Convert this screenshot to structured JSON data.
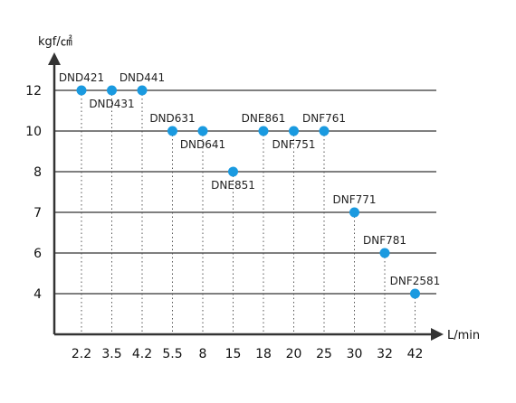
{
  "chart_data": {
    "type": "scatter",
    "ylabel": "kgf/㎠",
    "xlabel": "L/min",
    "x_categories": [
      "2.2",
      "3.5",
      "4.2",
      "5.5",
      "8",
      "15",
      "18",
      "20",
      "25",
      "30",
      "32",
      "42"
    ],
    "y_ticks": [
      4,
      6,
      7,
      8,
      10,
      12
    ],
    "grid": "horizontal",
    "point_color": "#1a9ae0",
    "points": [
      {
        "label": "DND421",
        "x": "2.2",
        "y": 12,
        "label_pos": "above"
      },
      {
        "label": "DND431",
        "x": "3.5",
        "y": 12,
        "label_pos": "below"
      },
      {
        "label": "DND441",
        "x": "4.2",
        "y": 12,
        "label_pos": "above"
      },
      {
        "label": "DND631",
        "x": "5.5",
        "y": 10,
        "label_pos": "above"
      },
      {
        "label": "DND641",
        "x": "8",
        "y": 10,
        "label_pos": "below"
      },
      {
        "label": "DNE851",
        "x": "15",
        "y": 8,
        "label_pos": "below"
      },
      {
        "label": "DNE861",
        "x": "18",
        "y": 10,
        "label_pos": "above"
      },
      {
        "label": "DNF751",
        "x": "20",
        "y": 10,
        "label_pos": "below"
      },
      {
        "label": "DNF761",
        "x": "25",
        "y": 10,
        "label_pos": "above"
      },
      {
        "label": "DNF771",
        "x": "30",
        "y": 7,
        "label_pos": "above"
      },
      {
        "label": "DNF781",
        "x": "32",
        "y": 6,
        "label_pos": "above"
      },
      {
        "label": "DNF2581",
        "x": "42",
        "y": 4,
        "label_pos": "above"
      }
    ]
  }
}
